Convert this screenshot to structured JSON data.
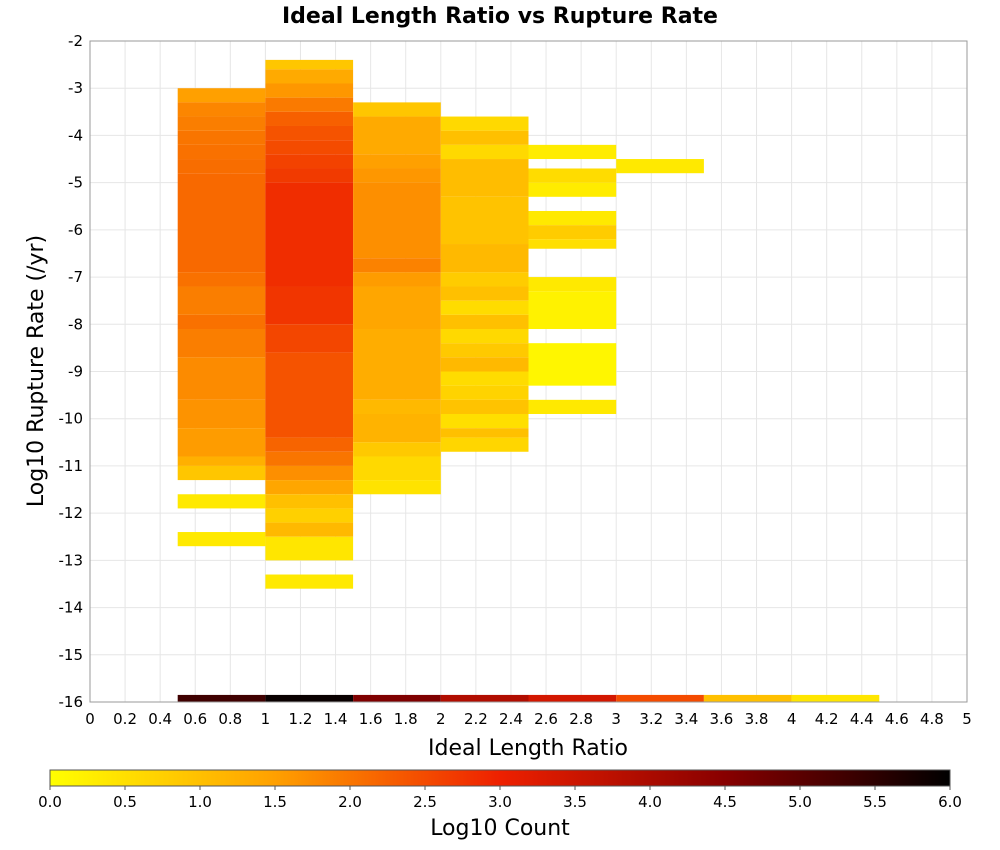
{
  "chart_data": {
    "type": "heatmap",
    "title": "Ideal Length Ratio vs Rupture Rate",
    "xlabel": "Ideal Length Ratio",
    "ylabel": "Log10 Rupture Rate (/yr)",
    "xlim": [
      0,
      5
    ],
    "ylim": [
      -16,
      -2
    ],
    "grid": true,
    "x_ticks": [
      "0",
      "0.2",
      "0.4",
      "0.6",
      "0.8",
      "1",
      "1.2",
      "1.4",
      "1.6",
      "1.8",
      "2",
      "2.2",
      "2.4",
      "2.6",
      "2.8",
      "3",
      "3.2",
      "3.4",
      "3.6",
      "3.8",
      "4",
      "4.2",
      "4.4",
      "4.6",
      "4.8",
      "5"
    ],
    "y_ticks": [
      "-2",
      "-3",
      "-4",
      "-5",
      "-6",
      "-7",
      "-8",
      "-9",
      "-10",
      "-11",
      "-12",
      "-13",
      "-14",
      "-15",
      "-16"
    ],
    "colorbar": {
      "label": "Log10 Count",
      "range": [
        0,
        6
      ],
      "ticks": [
        "0.0",
        "0.5",
        "1.0",
        "1.5",
        "2.0",
        "2.5",
        "3.0",
        "3.5",
        "4.0",
        "4.5",
        "5.0",
        "5.5",
        "6.0"
      ],
      "colormap": [
        "#ffff00",
        "#ffa000",
        "#ee2000",
        "#880000",
        "#000000"
      ]
    },
    "x_bin_width": 0.5,
    "columns": [
      {
        "x0": 0.5,
        "cells": [
          [
            -3.0,
            -3.3,
            1.5
          ],
          [
            -3.3,
            -3.6,
            1.8
          ],
          [
            -3.6,
            -3.9,
            1.9
          ],
          [
            -3.9,
            -4.2,
            2.0
          ],
          [
            -4.2,
            -4.5,
            2.05
          ],
          [
            -4.5,
            -4.8,
            2.1
          ],
          [
            -4.8,
            -6.9,
            2.15
          ],
          [
            -6.9,
            -7.2,
            2.05
          ],
          [
            -7.2,
            -7.8,
            1.9
          ],
          [
            -7.8,
            -8.1,
            2.05
          ],
          [
            -8.1,
            -8.7,
            1.9
          ],
          [
            -8.7,
            -9.6,
            1.75
          ],
          [
            -9.6,
            -10.2,
            1.65
          ],
          [
            -10.2,
            -10.8,
            1.55
          ],
          [
            -10.8,
            -11.0,
            1.25
          ],
          [
            -11.0,
            -11.3,
            0.9
          ],
          [
            -11.6,
            -11.9,
            0.35
          ],
          [
            -12.4,
            -12.7,
            0.35
          ]
        ]
      },
      {
        "x0": 1.0,
        "cells": [
          [
            -2.4,
            -2.6,
            0.9
          ],
          [
            -2.6,
            -2.9,
            1.35
          ],
          [
            -2.9,
            -3.2,
            1.6
          ],
          [
            -3.2,
            -3.5,
            1.95
          ],
          [
            -3.5,
            -3.8,
            2.25
          ],
          [
            -3.8,
            -4.1,
            2.4
          ],
          [
            -4.1,
            -4.4,
            2.5
          ],
          [
            -4.4,
            -4.7,
            2.6
          ],
          [
            -4.7,
            -5.0,
            2.7
          ],
          [
            -5.0,
            -7.2,
            2.85
          ],
          [
            -7.2,
            -8.0,
            2.75
          ],
          [
            -8.0,
            -8.6,
            2.55
          ],
          [
            -8.6,
            -10.4,
            2.4
          ],
          [
            -10.4,
            -10.7,
            2.2
          ],
          [
            -10.7,
            -11.0,
            2.0
          ],
          [
            -11.0,
            -11.3,
            1.7
          ],
          [
            -11.3,
            -11.6,
            1.4
          ],
          [
            -11.6,
            -11.9,
            1.0
          ],
          [
            -11.9,
            -12.2,
            0.75
          ],
          [
            -12.2,
            -12.5,
            1.1
          ],
          [
            -12.5,
            -13.0,
            0.4
          ],
          [
            -13.3,
            -13.6,
            0.35
          ]
        ]
      },
      {
        "x0": 1.5,
        "cells": [
          [
            -3.3,
            -3.6,
            0.9
          ],
          [
            -3.6,
            -4.4,
            1.35
          ],
          [
            -4.4,
            -4.7,
            1.5
          ],
          [
            -4.7,
            -5.0,
            1.6
          ],
          [
            -5.0,
            -6.6,
            1.7
          ],
          [
            -6.6,
            -6.9,
            1.85
          ],
          [
            -6.9,
            -7.2,
            1.55
          ],
          [
            -7.2,
            -8.1,
            1.4
          ],
          [
            -8.1,
            -9.6,
            1.3
          ],
          [
            -9.6,
            -9.9,
            1.1
          ],
          [
            -9.9,
            -10.5,
            1.2
          ],
          [
            -10.5,
            -10.8,
            0.85
          ],
          [
            -10.8,
            -11.3,
            0.6
          ],
          [
            -11.3,
            -11.6,
            0.45
          ]
        ]
      },
      {
        "x0": 2.0,
        "cells": [
          [
            -3.6,
            -3.9,
            0.6
          ],
          [
            -3.9,
            -4.2,
            1.0
          ],
          [
            -4.2,
            -4.5,
            0.6
          ],
          [
            -4.5,
            -5.3,
            1.05
          ],
          [
            -5.3,
            -6.3,
            0.95
          ],
          [
            -6.3,
            -6.9,
            1.1
          ],
          [
            -6.9,
            -7.2,
            0.8
          ],
          [
            -7.2,
            -7.5,
            1.0
          ],
          [
            -7.5,
            -7.8,
            0.55
          ],
          [
            -7.8,
            -8.1,
            1.0
          ],
          [
            -8.1,
            -8.4,
            0.6
          ],
          [
            -8.4,
            -8.7,
            0.85
          ],
          [
            -8.7,
            -9.0,
            1.1
          ],
          [
            -9.0,
            -9.3,
            0.55
          ],
          [
            -9.3,
            -9.6,
            0.7
          ],
          [
            -9.6,
            -9.9,
            0.95
          ],
          [
            -9.9,
            -10.2,
            0.5
          ],
          [
            -10.2,
            -10.4,
            1.0
          ],
          [
            -10.4,
            -10.7,
            0.65
          ]
        ]
      },
      {
        "x0": 2.5,
        "cells": [
          [
            -4.2,
            -4.5,
            0.3
          ],
          [
            -4.7,
            -5.0,
            0.55
          ],
          [
            -5.0,
            -5.3,
            0.3
          ],
          [
            -5.6,
            -5.9,
            0.35
          ],
          [
            -5.9,
            -6.2,
            0.8
          ],
          [
            -6.2,
            -6.4,
            0.5
          ],
          [
            -7.0,
            -7.3,
            0.35
          ],
          [
            -7.3,
            -8.1,
            0.2
          ],
          [
            -8.4,
            -9.3,
            0.15
          ],
          [
            -9.6,
            -9.9,
            0.35
          ]
        ]
      },
      {
        "x0": 3.0,
        "cells": [
          [
            -4.5,
            -4.8,
            0.35
          ]
        ]
      }
    ],
    "bottom_strip": {
      "y_range": [
        -15.85,
        -16.0
      ],
      "bins": [
        {
          "x0": 0.5,
          "value": 5.3
        },
        {
          "x0": 1.0,
          "value": 5.9
        },
        {
          "x0": 1.5,
          "value": 4.6
        },
        {
          "x0": 2.0,
          "value": 3.9
        },
        {
          "x0": 2.5,
          "value": 3.4
        },
        {
          "x0": 3.0,
          "value": 2.5
        },
        {
          "x0": 3.5,
          "value": 1.0
        },
        {
          "x0": 4.0,
          "value": 0.4
        }
      ]
    }
  }
}
